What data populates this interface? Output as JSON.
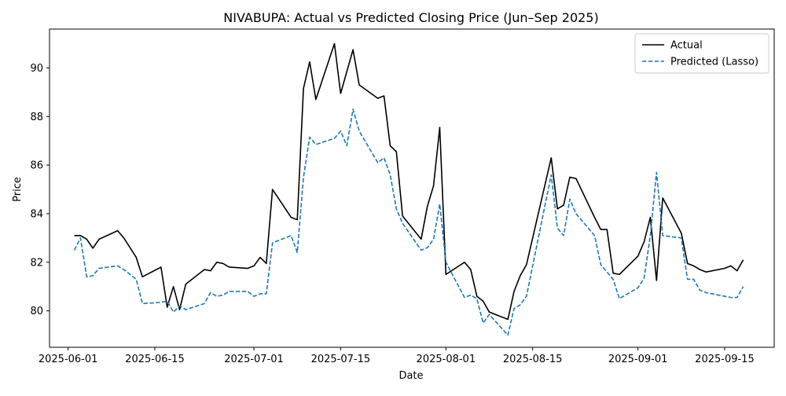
{
  "chart_data": {
    "type": "line",
    "title": "NIVABUPA: Actual vs Predicted Closing Price (Jun–Sep 2025)",
    "xlabel": "Date",
    "ylabel": "Price",
    "xlim": [
      "2025-05-29",
      "2025-09-23"
    ],
    "ylim": [
      78.5,
      91.6
    ],
    "x_ticks": [
      "2025-06-01",
      "2025-06-15",
      "2025-07-01",
      "2025-07-15",
      "2025-08-01",
      "2025-08-15",
      "2025-09-01",
      "2025-09-15"
    ],
    "y_ticks": [
      80,
      82,
      84,
      86,
      88,
      90
    ],
    "grid": false,
    "legend": "top-right",
    "series": [
      {
        "name": "Actual",
        "color": "#000000",
        "style": "solid",
        "points": [
          [
            "2025-06-02",
            83.1
          ],
          [
            "2025-06-03",
            83.1
          ],
          [
            "2025-06-04",
            82.95
          ],
          [
            "2025-06-05",
            82.58
          ],
          [
            "2025-06-06",
            82.95
          ],
          [
            "2025-06-09",
            83.3
          ],
          [
            "2025-06-10",
            83.0
          ],
          [
            "2025-06-12",
            82.2
          ],
          [
            "2025-06-13",
            81.4
          ],
          [
            "2025-06-16",
            81.8
          ],
          [
            "2025-06-17",
            80.15
          ],
          [
            "2025-06-18",
            81.0
          ],
          [
            "2025-06-19",
            80.05
          ],
          [
            "2025-06-20",
            81.1
          ],
          [
            "2025-06-23",
            81.7
          ],
          [
            "2025-06-24",
            81.65
          ],
          [
            "2025-06-25",
            82.0
          ],
          [
            "2025-06-26",
            81.95
          ],
          [
            "2025-06-27",
            81.8
          ],
          [
            "2025-06-30",
            81.75
          ],
          [
            "2025-07-01",
            81.85
          ],
          [
            "2025-07-02",
            82.2
          ],
          [
            "2025-07-03",
            81.95
          ],
          [
            "2025-07-04",
            85.0
          ],
          [
            "2025-07-07",
            83.85
          ],
          [
            "2025-07-08",
            83.75
          ],
          [
            "2025-07-09",
            89.15
          ],
          [
            "2025-07-10",
            90.25
          ],
          [
            "2025-07-11",
            88.7
          ],
          [
            "2025-07-14",
            91.0
          ],
          [
            "2025-07-15",
            88.95
          ],
          [
            "2025-07-17",
            90.75
          ],
          [
            "2025-07-18",
            89.3
          ],
          [
            "2025-07-21",
            88.75
          ],
          [
            "2025-07-22",
            88.85
          ],
          [
            "2025-07-23",
            86.8
          ],
          [
            "2025-07-24",
            86.55
          ],
          [
            "2025-07-25",
            83.9
          ],
          [
            "2025-07-28",
            82.95
          ],
          [
            "2025-07-29",
            84.3
          ],
          [
            "2025-07-30",
            85.15
          ],
          [
            "2025-07-31",
            87.55
          ],
          [
            "2025-08-01",
            81.5
          ],
          [
            "2025-08-04",
            82.0
          ],
          [
            "2025-08-05",
            81.7
          ],
          [
            "2025-08-06",
            80.6
          ],
          [
            "2025-08-07",
            80.4
          ],
          [
            "2025-08-08",
            79.95
          ],
          [
            "2025-08-11",
            79.65
          ],
          [
            "2025-08-12",
            80.8
          ],
          [
            "2025-08-13",
            81.45
          ],
          [
            "2025-08-14",
            81.9
          ],
          [
            "2025-08-18",
            86.3
          ],
          [
            "2025-08-19",
            84.2
          ],
          [
            "2025-08-20",
            84.35
          ],
          [
            "2025-08-21",
            85.5
          ],
          [
            "2025-08-22",
            85.45
          ],
          [
            "2025-08-25",
            83.85
          ],
          [
            "2025-08-26",
            83.35
          ],
          [
            "2025-08-27",
            83.35
          ],
          [
            "2025-08-28",
            81.55
          ],
          [
            "2025-08-29",
            81.5
          ],
          [
            "2025-09-01",
            82.25
          ],
          [
            "2025-09-02",
            82.85
          ],
          [
            "2025-09-03",
            83.85
          ],
          [
            "2025-09-04",
            81.25
          ],
          [
            "2025-09-05",
            84.65
          ],
          [
            "2025-09-08",
            83.2
          ],
          [
            "2025-09-09",
            81.95
          ],
          [
            "2025-09-10",
            81.85
          ],
          [
            "2025-09-11",
            81.7
          ],
          [
            "2025-09-12",
            81.6
          ],
          [
            "2025-09-15",
            81.75
          ],
          [
            "2025-09-16",
            81.85
          ],
          [
            "2025-09-17",
            81.65
          ],
          [
            "2025-09-18",
            82.1
          ]
        ]
      },
      {
        "name": "Predicted (Lasso)",
        "color": "#1f77b4",
        "style": "dashed",
        "points": [
          [
            "2025-06-02",
            82.5
          ],
          [
            "2025-06-03",
            83.0
          ],
          [
            "2025-06-04",
            81.4
          ],
          [
            "2025-06-05",
            81.45
          ],
          [
            "2025-06-06",
            81.75
          ],
          [
            "2025-06-09",
            81.85
          ],
          [
            "2025-06-10",
            81.7
          ],
          [
            "2025-06-12",
            81.3
          ],
          [
            "2025-06-13",
            80.3
          ],
          [
            "2025-06-16",
            80.35
          ],
          [
            "2025-06-17",
            80.4
          ],
          [
            "2025-06-18",
            79.95
          ],
          [
            "2025-06-19",
            80.2
          ],
          [
            "2025-06-20",
            80.05
          ],
          [
            "2025-06-23",
            80.3
          ],
          [
            "2025-06-24",
            80.75
          ],
          [
            "2025-06-25",
            80.6
          ],
          [
            "2025-06-26",
            80.65
          ],
          [
            "2025-06-27",
            80.8
          ],
          [
            "2025-06-30",
            80.8
          ],
          [
            "2025-07-01",
            80.6
          ],
          [
            "2025-07-02",
            80.7
          ],
          [
            "2025-07-03",
            80.7
          ],
          [
            "2025-07-04",
            82.8
          ],
          [
            "2025-07-07",
            83.1
          ],
          [
            "2025-07-08",
            82.4
          ],
          [
            "2025-07-09",
            85.5
          ],
          [
            "2025-07-10",
            87.15
          ],
          [
            "2025-07-11",
            86.85
          ],
          [
            "2025-07-14",
            87.1
          ],
          [
            "2025-07-15",
            87.4
          ],
          [
            "2025-07-16",
            86.8
          ],
          [
            "2025-07-17",
            88.3
          ],
          [
            "2025-07-18",
            87.4
          ],
          [
            "2025-07-21",
            86.1
          ],
          [
            "2025-07-22",
            86.3
          ],
          [
            "2025-07-23",
            85.6
          ],
          [
            "2025-07-24",
            84.2
          ],
          [
            "2025-07-25",
            83.6
          ],
          [
            "2025-07-28",
            82.5
          ],
          [
            "2025-07-29",
            82.6
          ],
          [
            "2025-07-30",
            82.95
          ],
          [
            "2025-07-31",
            84.4
          ],
          [
            "2025-08-01",
            82.0
          ],
          [
            "2025-08-04",
            80.55
          ],
          [
            "2025-08-05",
            80.65
          ],
          [
            "2025-08-06",
            80.5
          ],
          [
            "2025-08-07",
            79.5
          ],
          [
            "2025-08-08",
            79.85
          ],
          [
            "2025-08-11",
            79.0
          ],
          [
            "2025-08-12",
            80.1
          ],
          [
            "2025-08-13",
            80.25
          ],
          [
            "2025-08-14",
            80.6
          ],
          [
            "2025-08-18",
            85.6
          ],
          [
            "2025-08-19",
            83.4
          ],
          [
            "2025-08-20",
            83.1
          ],
          [
            "2025-08-21",
            84.6
          ],
          [
            "2025-08-22",
            84.0
          ],
          [
            "2025-08-25",
            83.1
          ],
          [
            "2025-08-26",
            81.9
          ],
          [
            "2025-08-27",
            81.6
          ],
          [
            "2025-08-28",
            81.3
          ],
          [
            "2025-08-29",
            80.5
          ],
          [
            "2025-09-01",
            80.95
          ],
          [
            "2025-09-02",
            81.35
          ],
          [
            "2025-09-03",
            83.1
          ],
          [
            "2025-09-04",
            85.7
          ],
          [
            "2025-09-05",
            83.1
          ],
          [
            "2025-09-08",
            83.0
          ],
          [
            "2025-09-09",
            81.3
          ],
          [
            "2025-09-10",
            81.3
          ],
          [
            "2025-09-11",
            80.85
          ],
          [
            "2025-09-12",
            80.75
          ],
          [
            "2025-09-16",
            80.55
          ],
          [
            "2025-09-17",
            80.55
          ],
          [
            "2025-09-18",
            81.0
          ]
        ]
      }
    ]
  }
}
